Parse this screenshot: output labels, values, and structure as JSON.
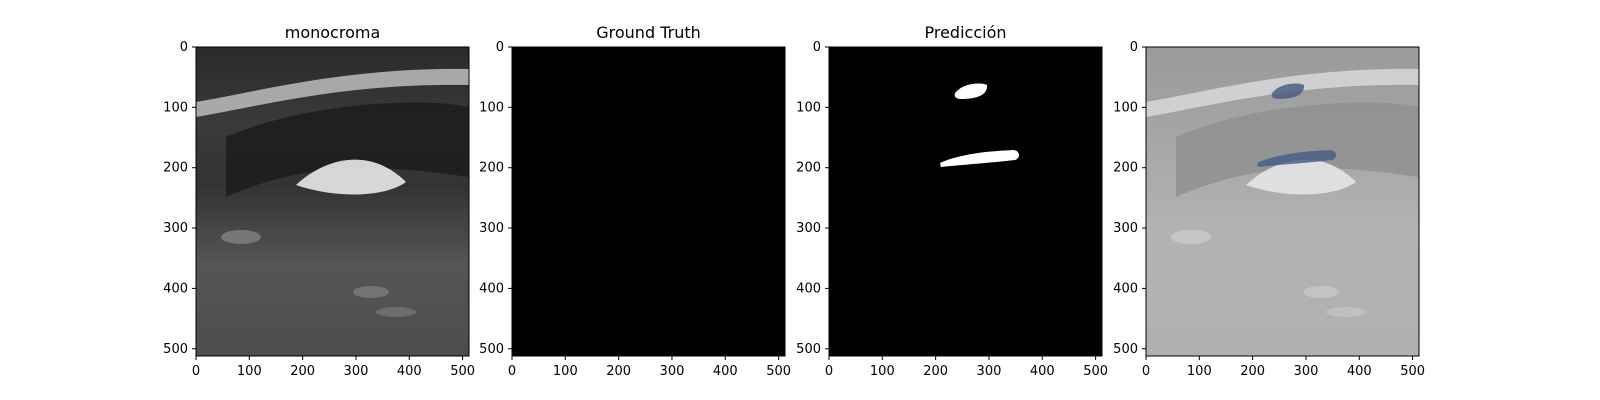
{
  "panels": [
    {
      "title": "monocroma",
      "image": "ultrasound-grayscale",
      "mask": "none"
    },
    {
      "title": "Ground Truth",
      "image": "black-mask",
      "mask": "none"
    },
    {
      "title": "Predicción",
      "image": "binary-mask",
      "mask": "white-regions"
    },
    {
      "title": "",
      "image": "ultrasound-overlay",
      "mask": "blue-overlay"
    }
  ],
  "axes": {
    "x_ticks": [
      "0",
      "100",
      "200",
      "300",
      "400",
      "500"
    ],
    "y_ticks": [
      "0",
      "100",
      "200",
      "300",
      "400",
      "500"
    ]
  },
  "colors": {
    "mask_white": "#ffffff",
    "overlay_blue": "#4a5f86",
    "background_black": "#000000"
  }
}
